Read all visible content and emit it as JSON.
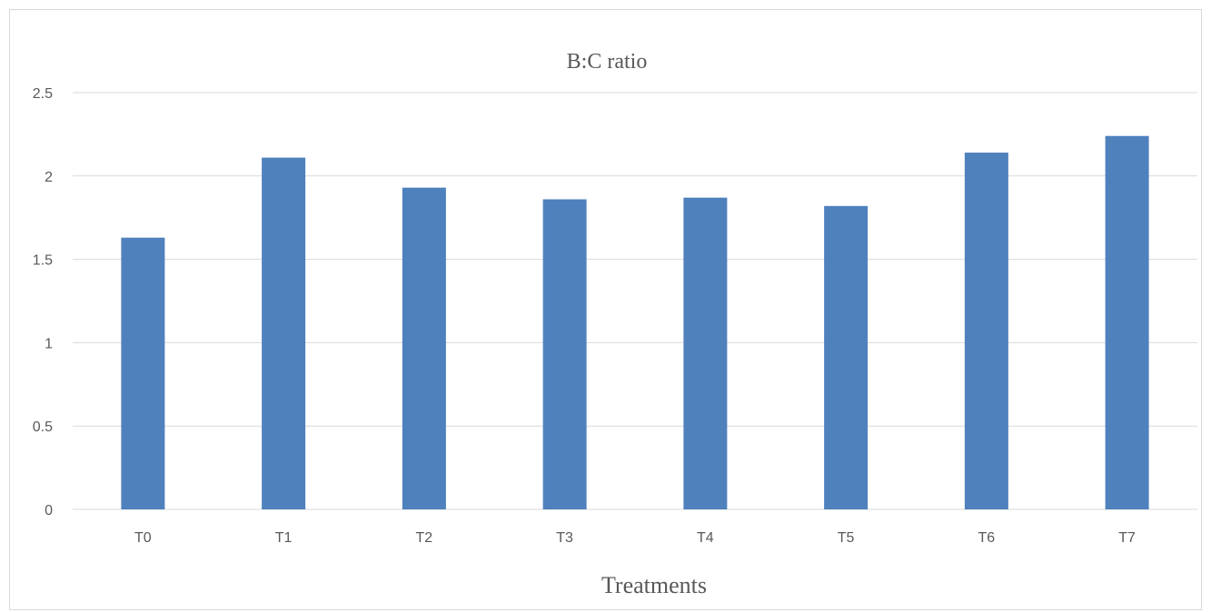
{
  "chart_data": {
    "type": "bar",
    "title": "B:C ratio",
    "xlabel": "Treatments",
    "ylabel": "",
    "categories": [
      "T0",
      "T1",
      "T2",
      "T3",
      "T4",
      "T5",
      "T6",
      "T7"
    ],
    "series": [
      {
        "values": [
          1.63,
          2.11,
          1.93,
          1.86,
          1.87,
          1.82,
          2.14,
          2.24
        ],
        "color": "#4f81bd"
      }
    ],
    "ylim": [
      0,
      2.5
    ],
    "yticks": [
      "0",
      "0.5",
      "1",
      "1.5",
      "2",
      "2.5"
    ],
    "grid": true,
    "legend": "none"
  }
}
